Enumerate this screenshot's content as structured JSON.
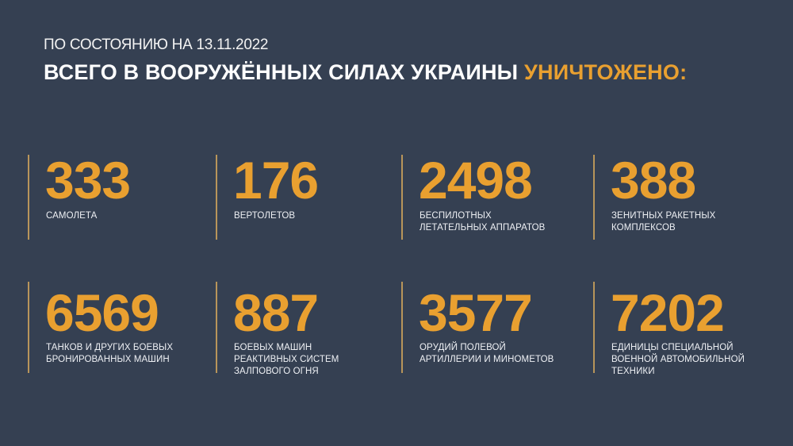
{
  "header": {
    "subtitle": "ПО СОСТОЯНИЮ НА 13.11.2022",
    "title_main": "ВСЕГО В ВООРУЖЁННЫХ СИЛАХ УКРАИНЫ ",
    "title_accent": "УНИЧТОЖЕНО:"
  },
  "colors": {
    "background": "#354052",
    "accent": "#e9a030",
    "text": "#ffffff"
  },
  "stats": [
    {
      "value": "333",
      "label": "САМОЛЕТА"
    },
    {
      "value": "176",
      "label": "ВЕРТОЛЕТОВ"
    },
    {
      "value": "2498",
      "label": "БЕСПИЛОТНЫХ\nЛЕТАТЕЛЬНЫХ АППАРАТОВ"
    },
    {
      "value": "388",
      "label": "ЗЕНИТНЫХ РАКЕТНЫХ\nКОМПЛЕКСОВ"
    },
    {
      "value": "6569",
      "label": "ТАНКОВ И ДРУГИХ БОЕВЫХ\nБРОНИРОВАННЫХ МАШИН"
    },
    {
      "value": "887",
      "label": "БОЕВЫХ МАШИН\nРЕАКТИВНЫХ СИСТЕМ\nЗАЛПОВОГО ОГНЯ"
    },
    {
      "value": "3577",
      "label": "ОРУДИЙ ПОЛЕВОЙ\nАРТИЛЛЕРИИ И МИНОМЕТОВ"
    },
    {
      "value": "7202",
      "label": "ЕДИНИЦЫ СПЕЦИАЛЬНОЙ\nВОЕННОЙ АВТОМОБИЛЬНОЙ\nТЕХНИКИ"
    }
  ]
}
